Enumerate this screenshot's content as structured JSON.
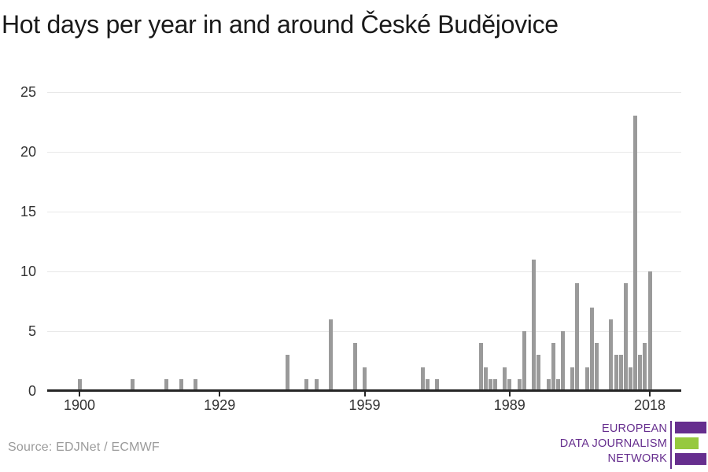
{
  "title": "Hot days per year in and around České Budějovice",
  "source": "Source: EDJNet / ECMWF",
  "logo": {
    "line1": "EUROPEAN",
    "line2": "DATA JOURNALISM",
    "line3": "NETWORK",
    "purple": "#662e8e",
    "green": "#96c93e"
  },
  "colors": {
    "bar": "#9a9a9a",
    "axis": "#262626",
    "grid": "#e8e8e8",
    "tick_label": "#333333",
    "title": "#1a1a1a",
    "source": "#9b9b9b"
  },
  "chart_data": {
    "type": "bar",
    "title": "Hot days per year in and around České Budějovice",
    "xlabel": "",
    "ylabel": "",
    "x_start_year": 1900,
    "x_end_year": 2018,
    "values": [
      1,
      0,
      0,
      0,
      0,
      0,
      0,
      0,
      0,
      0,
      0,
      1,
      0,
      0,
      0,
      0,
      0,
      0,
      1,
      0,
      0,
      1,
      0,
      0,
      1,
      0,
      0,
      0,
      0,
      0,
      0,
      0,
      0,
      0,
      0,
      0,
      0,
      0,
      0,
      0,
      0,
      0,
      0,
      3,
      0,
      0,
      0,
      1,
      0,
      1,
      0,
      0,
      6,
      0,
      0,
      0,
      0,
      4,
      0,
      2,
      0,
      0,
      0,
      0,
      0,
      0,
      0,
      0,
      0,
      0,
      0,
      2,
      1,
      0,
      1,
      0,
      0,
      0,
      0,
      0,
      0,
      0,
      0,
      4,
      2,
      1,
      1,
      0,
      2,
      1,
      0,
      1,
      5,
      0,
      11,
      3,
      0,
      1,
      4,
      1,
      5,
      0,
      2,
      9,
      0,
      2,
      7,
      4,
      0,
      0,
      6,
      3,
      3,
      9,
      2,
      23,
      3,
      4,
      10
    ],
    "x_tick_years": [
      1900,
      1929,
      1959,
      1989,
      2018
    ],
    "y_ticks": [
      0,
      5,
      10,
      15,
      20,
      25
    ],
    "ylim": [
      0,
      25
    ],
    "grid": "horizontal-only",
    "legend": "none",
    "bar_color": "#9a9a9a"
  }
}
